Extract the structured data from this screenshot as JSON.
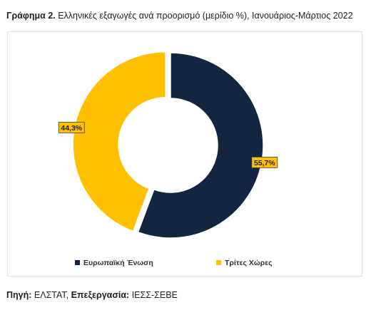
{
  "caption": {
    "prefix": "Γράφημα 2.",
    "text": " Ελληνικές εξαγωγές ανά προορισμό (μερίδιο %), Ιανουάριος-Μάρτιος 2022"
  },
  "chart_data": {
    "type": "pie",
    "subtype": "donut",
    "categories": [
      "Ευρωπαϊκή Ένωση",
      "Τρίτες Χώρες"
    ],
    "values": [
      55.7,
      44.3
    ],
    "data_labels": [
      "55,7%",
      "44,3%"
    ],
    "colors": [
      "#13253f",
      "#ffc000"
    ],
    "label_colors": [
      "#ffc000",
      "#ffc000"
    ],
    "exploded": "Τρίτες Χώρες",
    "legend_position": "bottom"
  },
  "source": {
    "label": "Πηγή:",
    "value": " ΕΛΣΤΑΤ, ",
    "label2": "Επεξεργασία:",
    "value2": " ΙΕΣΣ-ΣΕΒΕ"
  }
}
